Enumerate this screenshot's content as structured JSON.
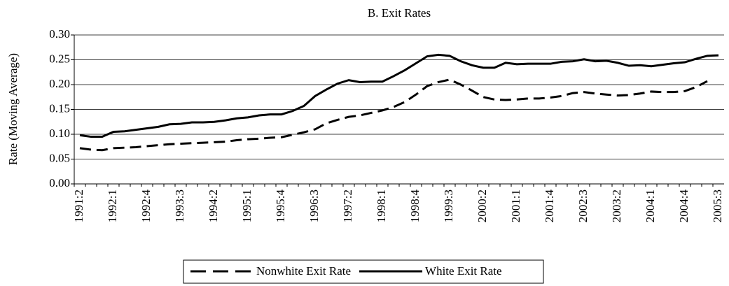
{
  "chart_data": {
    "type": "line",
    "title": "B. Exit Rates",
    "y_label": "Rate (Moving Average)",
    "categories": [
      "1991:2",
      null,
      null,
      "1992:1",
      null,
      null,
      "1992:4",
      null,
      null,
      "1993:3",
      null,
      null,
      "1994:2",
      null,
      null,
      "1995:1",
      null,
      null,
      "1995:4",
      null,
      null,
      "1996:3",
      null,
      null,
      "1997:2",
      null,
      null,
      "1998:1",
      null,
      null,
      "1998:4",
      null,
      null,
      "1999:3",
      null,
      null,
      "2000:2",
      null,
      null,
      "2001:1",
      null,
      null,
      "2001:4",
      null,
      null,
      "2002:3",
      null,
      null,
      "2003:2",
      null,
      null,
      "2004:1",
      null,
      null,
      "2004:4",
      null,
      null,
      "2005:3"
    ],
    "series": [
      {
        "name": "Nonwhite Exit Rate",
        "color": "#000000",
        "dashed": true,
        "values": [
          0.072,
          0.069,
          0.068,
          0.072,
          0.073,
          0.074,
          0.076,
          0.078,
          0.08,
          0.081,
          0.082,
          0.083,
          0.084,
          0.085,
          0.088,
          0.09,
          0.091,
          0.093,
          0.094,
          0.099,
          0.104,
          0.11,
          0.122,
          0.129,
          0.135,
          0.138,
          0.143,
          0.148,
          0.155,
          0.165,
          0.18,
          0.197,
          0.205,
          0.21,
          0.2,
          0.188,
          0.175,
          0.17,
          0.169,
          0.17,
          0.172,
          0.172,
          0.174,
          0.177,
          0.183,
          0.185,
          0.182,
          0.18,
          0.178,
          0.179,
          0.182,
          0.186,
          0.185,
          0.185,
          0.187,
          0.195,
          0.207,
          null
        ]
      },
      {
        "name": "White Exit Rate",
        "color": "#000000",
        "dashed": false,
        "values": [
          0.098,
          0.095,
          0.095,
          0.105,
          0.106,
          0.109,
          0.112,
          0.115,
          0.12,
          0.121,
          0.124,
          0.124,
          0.125,
          0.128,
          0.132,
          0.134,
          0.138,
          0.14,
          0.14,
          0.147,
          0.157,
          0.177,
          0.19,
          0.202,
          0.209,
          0.205,
          0.206,
          0.206,
          0.217,
          0.229,
          0.243,
          0.257,
          0.26,
          0.258,
          0.247,
          0.239,
          0.234,
          0.234,
          0.244,
          0.241,
          0.242,
          0.242,
          0.242,
          0.246,
          0.247,
          0.251,
          0.247,
          0.248,
          0.244,
          0.238,
          0.239,
          0.237,
          0.24,
          0.243,
          0.245,
          0.252,
          0.258,
          0.259
        ]
      }
    ],
    "ylim": [
      0,
      0.3
    ],
    "yticks": [
      {
        "value": 0,
        "label": "0.00"
      },
      {
        "value": 0.05,
        "label": "0.05"
      },
      {
        "value": 0.1,
        "label": "0.10"
      },
      {
        "value": 0.15,
        "label": "0.15"
      },
      {
        "value": 0.2,
        "label": "0.20"
      },
      {
        "value": 0.25,
        "label": "0.25"
      },
      {
        "value": 0.3,
        "label": "0.30"
      }
    ],
    "grid": true,
    "legend": "bottom"
  }
}
